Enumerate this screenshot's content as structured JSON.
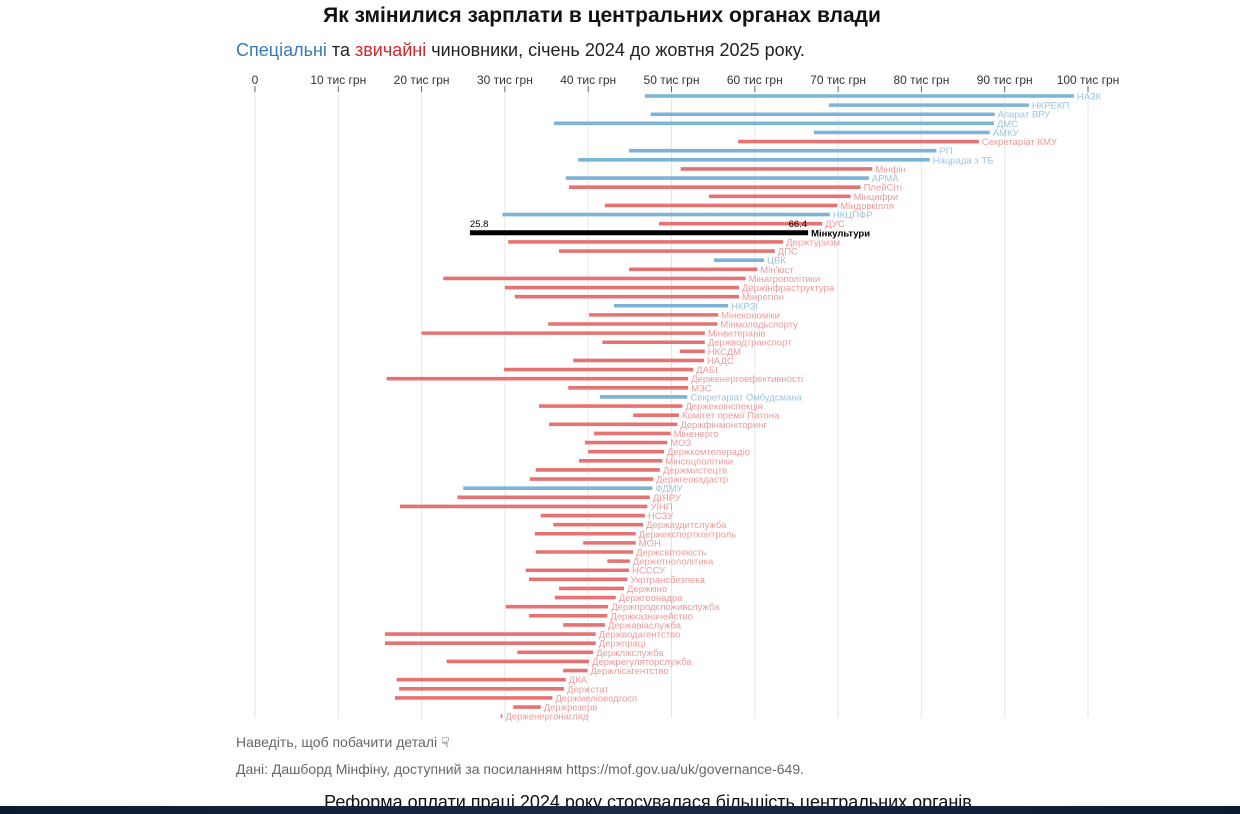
{
  "header": {
    "title": "Як змінилися зарплати в центральних органах влади",
    "subtitle_special": "Спеціальні",
    "subtitle_and": " та ",
    "subtitle_regular": "звичайні",
    "subtitle_rest": " чиновники, січень 2024 до жовтня 2025 року."
  },
  "footer": {
    "hint": "Наведіть, щоб побачити деталі",
    "hint_icon": "pointer-hand-icon",
    "source": "Дані: Дашборд Мінфіну, доступний за посиланням https://mof.gov.ua/uk/governance-649.",
    "next_paragraph": "Реформа оплати праці 2024 року стосувалася більшість центральних органів"
  },
  "colors": {
    "special": "#7db3d6",
    "regular": "#e57373",
    "special_label": "#9cc4e0",
    "regular_label": "#ef9a9a",
    "highlight": "#000000"
  },
  "chart_data": {
    "type": "bar",
    "subtype": "range-dumbbell-horizontal",
    "title": "Як змінилися зарплати в центральних органах влади",
    "subtitle": "Спеціальні та звичайні чиновники, січень 2024 до жовтня 2025 року.",
    "xlabel": "",
    "ylabel": "",
    "xlim": [
      0,
      100
    ],
    "x_ticks": [
      0,
      10,
      20,
      30,
      40,
      50,
      60,
      70,
      80,
      90,
      100
    ],
    "x_tick_labels": [
      "0",
      "10 тис грн",
      "20 тис грн",
      "30 тис грн",
      "40 тис грн",
      "50 тис грн",
      "60 тис грн",
      "70 тис грн",
      "80 тис грн",
      "90 тис грн",
      "100 тис грн"
    ],
    "grid": true,
    "legend": "in subtitle (colored words)",
    "highlighted": {
      "name": "Мінкультури",
      "start_label": "25.8",
      "end_label": "66.4"
    },
    "series": [
      {
        "name": "НАЗК",
        "type": "special",
        "start": 46.8,
        "end": 98.3
      },
      {
        "name": "НКРЕКП",
        "type": "special",
        "start": 68.9,
        "end": 92.9
      },
      {
        "name": "Апарат ВРУ",
        "type": "special",
        "start": 47.5,
        "end": 88.8
      },
      {
        "name": "ДМС",
        "type": "special",
        "start": 35.9,
        "end": 88.7
      },
      {
        "name": "АМКУ",
        "type": "special",
        "start": 67.1,
        "end": 88.2
      },
      {
        "name": "Секретаріат КМУ",
        "type": "regular",
        "start": 58.0,
        "end": 86.9
      },
      {
        "name": "РП",
        "type": "special",
        "start": 44.9,
        "end": 81.8
      },
      {
        "name": "Нацрада з ТБ",
        "type": "special",
        "start": 38.8,
        "end": 81.0
      },
      {
        "name": "Мінфін",
        "type": "regular",
        "start": 51.1,
        "end": 74.1
      },
      {
        "name": "АРМА",
        "type": "special",
        "start": 37.3,
        "end": 73.7
      },
      {
        "name": "ПлейСіті",
        "type": "regular",
        "start": 37.7,
        "end": 72.7
      },
      {
        "name": "Мінцифри",
        "type": "regular",
        "start": 54.5,
        "end": 71.5
      },
      {
        "name": "Міндовкілля",
        "type": "regular",
        "start": 42.0,
        "end": 69.9
      },
      {
        "name": "НКЦПФР",
        "type": "special",
        "start": 29.7,
        "end": 69.0
      },
      {
        "name": "ДУС",
        "type": "regular",
        "start": 48.5,
        "end": 68.1
      },
      {
        "name": "Мінкультури",
        "type": "highlight",
        "start": 25.8,
        "end": 66.4
      },
      {
        "name": "Держтуризм",
        "type": "regular",
        "start": 30.4,
        "end": 63.4
      },
      {
        "name": "ДПС",
        "type": "regular",
        "start": 36.5,
        "end": 62.4
      },
      {
        "name": "ЦВК",
        "type": "special",
        "start": 55.1,
        "end": 61.1
      },
      {
        "name": "Мін'юст",
        "type": "regular",
        "start": 44.9,
        "end": 60.3
      },
      {
        "name": "Мінагрополітики",
        "type": "regular",
        "start": 22.6,
        "end": 58.9
      },
      {
        "name": "Держінфраструктура",
        "type": "regular",
        "start": 30.0,
        "end": 58.1
      },
      {
        "name": "Мінрегіон",
        "type": "regular",
        "start": 31.2,
        "end": 58.1
      },
      {
        "name": "НКРЗІ",
        "type": "special",
        "start": 43.1,
        "end": 56.8
      },
      {
        "name": "Мінекономіки",
        "type": "regular",
        "start": 40.1,
        "end": 55.6
      },
      {
        "name": "Мінмолодьспорту",
        "type": "regular",
        "start": 35.2,
        "end": 55.5
      },
      {
        "name": "Мінветеранів",
        "type": "regular",
        "start": 20.0,
        "end": 54.0
      },
      {
        "name": "Держводтранспорт",
        "type": "regular",
        "start": 41.7,
        "end": 54.0
      },
      {
        "name": "НКСДМ",
        "type": "regular",
        "start": 51.0,
        "end": 54.0
      },
      {
        "name": "НАДС",
        "type": "regular",
        "start": 38.2,
        "end": 53.9
      },
      {
        "name": "ДАБІ",
        "type": "regular",
        "start": 29.9,
        "end": 52.6
      },
      {
        "name": "Держенергоефективності",
        "type": "regular",
        "start": 15.8,
        "end": 52.0
      },
      {
        "name": "МЗС",
        "type": "regular",
        "start": 37.6,
        "end": 52.0
      },
      {
        "name": "Секретаріат Омбудсмана",
        "type": "special",
        "start": 41.4,
        "end": 51.9
      },
      {
        "name": "Держекоінспекція",
        "type": "regular",
        "start": 34.1,
        "end": 51.3
      },
      {
        "name": "Комітет премії Патона",
        "type": "regular",
        "start": 45.4,
        "end": 50.9
      },
      {
        "name": "Держфінмоніторинг",
        "type": "regular",
        "start": 35.3,
        "end": 50.7
      },
      {
        "name": "Міненерго",
        "type": "regular",
        "start": 40.7,
        "end": 49.9
      },
      {
        "name": "МОЗ",
        "type": "regular",
        "start": 39.6,
        "end": 49.5
      },
      {
        "name": "Держкомтелерадіо",
        "type": "regular",
        "start": 40.0,
        "end": 49.1
      },
      {
        "name": "Мінсоцполітики",
        "type": "regular",
        "start": 38.9,
        "end": 48.9
      },
      {
        "name": "Держмистецтв",
        "type": "regular",
        "start": 33.7,
        "end": 48.6
      },
      {
        "name": "Держгеокадастр",
        "type": "regular",
        "start": 33.0,
        "end": 47.8
      },
      {
        "name": "ФДМУ",
        "type": "special",
        "start": 25.0,
        "end": 47.7
      },
      {
        "name": "ДІЯРУ",
        "type": "regular",
        "start": 24.3,
        "end": 47.4
      },
      {
        "name": "УІНП",
        "type": "regular",
        "start": 17.4,
        "end": 47.1
      },
      {
        "name": "НСЗУ",
        "type": "regular",
        "start": 34.3,
        "end": 46.8
      },
      {
        "name": "Держаудитслужба",
        "type": "regular",
        "start": 35.8,
        "end": 46.6
      },
      {
        "name": "Держекспортконтроль",
        "type": "regular",
        "start": 33.6,
        "end": 45.7
      },
      {
        "name": "МОН",
        "type": "regular",
        "start": 39.4,
        "end": 45.7
      },
      {
        "name": "Держсвітоякість",
        "type": "regular",
        "start": 33.7,
        "end": 45.4
      },
      {
        "name": "Держетнополітика",
        "type": "regular",
        "start": 42.3,
        "end": 45.0
      },
      {
        "name": "НСССУ",
        "type": "regular",
        "start": 32.5,
        "end": 44.9
      },
      {
        "name": "Укртрансбезпека",
        "type": "regular",
        "start": 32.9,
        "end": 44.7
      },
      {
        "name": "Держкіно",
        "type": "regular",
        "start": 36.5,
        "end": 44.3
      },
      {
        "name": "Держгеонадра",
        "type": "regular",
        "start": 36.0,
        "end": 43.3
      },
      {
        "name": "Держпродспоживслужба",
        "type": "regular",
        "start": 30.1,
        "end": 42.4
      },
      {
        "name": "Держказначейство",
        "type": "regular",
        "start": 32.9,
        "end": 42.3
      },
      {
        "name": "Державіаслужба",
        "type": "regular",
        "start": 37.0,
        "end": 42.0
      },
      {
        "name": "Держводагентство",
        "type": "regular",
        "start": 15.6,
        "end": 40.9
      },
      {
        "name": "Держпраці",
        "type": "regular",
        "start": 15.6,
        "end": 40.9
      },
      {
        "name": "Держлікслужба",
        "type": "regular",
        "start": 31.5,
        "end": 40.6
      },
      {
        "name": "Держрегуляторслужба",
        "type": "regular",
        "start": 23.0,
        "end": 40.1
      },
      {
        "name": "Держлісагентство",
        "type": "regular",
        "start": 37.0,
        "end": 39.9
      },
      {
        "name": "ДКА",
        "type": "regular",
        "start": 17.0,
        "end": 37.3
      },
      {
        "name": "Держстат",
        "type": "regular",
        "start": 17.3,
        "end": 37.1
      },
      {
        "name": "Держмеліоводгосп",
        "type": "regular",
        "start": 16.8,
        "end": 35.7
      },
      {
        "name": "Держрезерв",
        "type": "regular",
        "start": 31.0,
        "end": 34.3
      },
      {
        "name": "Держенергонагляд",
        "type": "regular",
        "start": 29.5,
        "end": 29.7
      }
    ]
  }
}
